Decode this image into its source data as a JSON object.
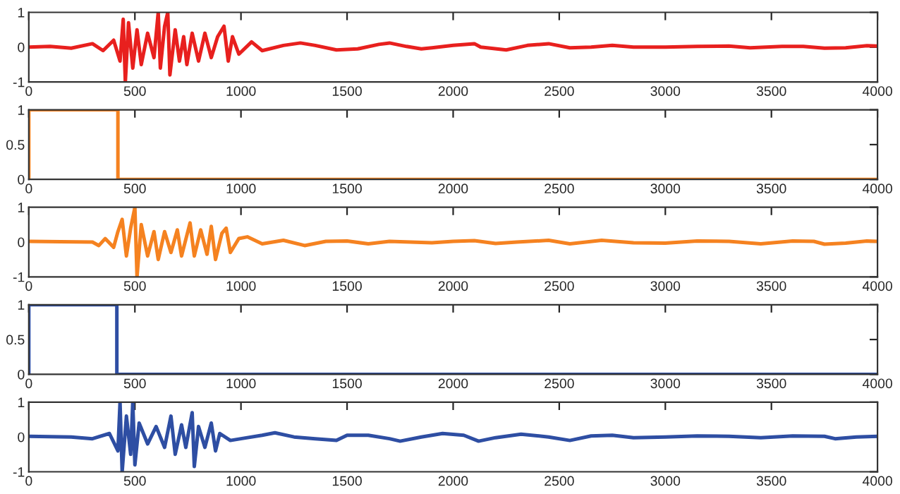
{
  "chart_data": [
    {
      "type": "line",
      "xlim": [
        0,
        4000
      ],
      "ylim": [
        -1,
        1
      ],
      "xticks": [
        0,
        500,
        1000,
        1500,
        2000,
        2500,
        3000,
        3500,
        4000
      ],
      "yticks": [
        -1,
        0,
        1
      ],
      "grid": false,
      "legend": false,
      "series": [
        {
          "color": "#e8201e",
          "x": [
            0,
            100,
            200,
            300,
            350,
            400,
            430,
            445,
            455,
            470,
            490,
            510,
            530,
            560,
            590,
            610,
            620,
            640,
            655,
            665,
            690,
            710,
            730,
            745,
            770,
            800,
            830,
            860,
            890,
            920,
            940,
            960,
            990,
            1050,
            1100,
            1200,
            1280,
            1350,
            1450,
            1550,
            1650,
            1700,
            1780,
            1850,
            1900,
            2000,
            2100,
            2130,
            2250,
            2350,
            2450,
            2550,
            2650,
            2750,
            2850,
            3000,
            3150,
            3300,
            3400,
            3550,
            3650,
            3750,
            3850,
            3950,
            4000
          ],
          "values": [
            0,
            0.02,
            -0.03,
            0.1,
            -0.1,
            0.2,
            -0.4,
            0.8,
            -1,
            0.7,
            -0.6,
            0.5,
            -0.5,
            0.4,
            -0.3,
            1,
            -0.6,
            0.6,
            1,
            -0.8,
            0.5,
            -0.4,
            0.3,
            -0.5,
            0.4,
            -0.4,
            0.4,
            -0.3,
            0.3,
            0.6,
            -0.4,
            0.3,
            -0.2,
            0.15,
            -0.1,
            0.05,
            0.12,
            0.05,
            -0.08,
            -0.05,
            0.08,
            0.12,
            0.02,
            -0.05,
            -0.02,
            0.05,
            0.1,
            0,
            -0.08,
            0.05,
            0.1,
            -0.02,
            0,
            0.05,
            0,
            0,
            0.02,
            0.03,
            -0.02,
            0.02,
            0.02,
            -0.03,
            -0.02,
            0.04,
            0.03
          ]
        }
      ]
    },
    {
      "type": "line",
      "xlim": [
        0,
        4000
      ],
      "ylim": [
        0,
        1
      ],
      "xticks": [
        0,
        500,
        1000,
        1500,
        2000,
        2500,
        3000,
        3500,
        4000
      ],
      "yticks": [
        0,
        0.5,
        1
      ],
      "grid": false,
      "legend": false,
      "series": [
        {
          "color": "#f58220",
          "x": [
            0,
            0,
            420,
            420,
            4000
          ],
          "values": [
            0,
            1,
            1,
            0,
            0
          ]
        }
      ]
    },
    {
      "type": "line",
      "xlim": [
        0,
        4000
      ],
      "ylim": [
        -1,
        1
      ],
      "xticks": [
        0,
        500,
        1000,
        1500,
        2000,
        2500,
        3000,
        3500,
        4000
      ],
      "yticks": [
        -1,
        0,
        1
      ],
      "grid": false,
      "legend": false,
      "series": [
        {
          "color": "#f58220",
          "x": [
            0,
            300,
            330,
            360,
            400,
            420,
            440,
            460,
            480,
            500,
            510,
            530,
            560,
            590,
            610,
            640,
            670,
            700,
            720,
            760,
            780,
            810,
            840,
            860,
            880,
            910,
            930,
            950,
            990,
            1030,
            1100,
            1200,
            1300,
            1400,
            1500,
            1600,
            1700,
            1800,
            1900,
            2000,
            2100,
            2200,
            2300,
            2450,
            2550,
            2700,
            2850,
            3000,
            3150,
            3300,
            3450,
            3600,
            3700,
            3750,
            3850,
            3950,
            4000
          ],
          "values": [
            0.02,
            0,
            -0.1,
            0.1,
            -0.15,
            0.3,
            0.65,
            -0.4,
            0.4,
            1,
            -1,
            0.5,
            -0.4,
            0.3,
            -0.5,
            0.3,
            -0.3,
            0.35,
            -0.4,
            0.55,
            -0.4,
            0.35,
            -0.35,
            0.45,
            -0.5,
            0.25,
            0.4,
            -0.3,
            0.1,
            0.15,
            -0.05,
            0.05,
            -0.1,
            0.02,
            0.03,
            -0.05,
            0.02,
            0,
            -0.02,
            0.02,
            0.04,
            -0.04,
            0,
            0.05,
            -0.05,
            0.05,
            -0.02,
            -0.03,
            0.03,
            0.02,
            -0.05,
            0.03,
            0.02,
            -0.06,
            -0.03,
            0.03,
            0.02
          ]
        }
      ]
    },
    {
      "type": "line",
      "xlim": [
        0,
        4000
      ],
      "ylim": [
        0,
        1
      ],
      "xticks": [
        0,
        500,
        1000,
        1500,
        2000,
        2500,
        3000,
        3500,
        4000
      ],
      "yticks": [
        0,
        0.5,
        1
      ],
      "grid": false,
      "legend": false,
      "series": [
        {
          "color": "#2e4ea3",
          "x": [
            0,
            0,
            415,
            415,
            4000
          ],
          "values": [
            0,
            1,
            1,
            0,
            0
          ]
        }
      ]
    },
    {
      "type": "line",
      "xlim": [
        0,
        4000
      ],
      "ylim": [
        -1,
        1
      ],
      "xticks": [
        0,
        500,
        1000,
        1500,
        2000,
        2500,
        3000,
        3500,
        4000
      ],
      "yticks": [
        -1,
        0,
        1
      ],
      "grid": false,
      "legend": false,
      "series": [
        {
          "color": "#2e4ea3",
          "x": [
            0,
            200,
            300,
            380,
            420,
            430,
            440,
            460,
            480,
            490,
            500,
            520,
            560,
            600,
            640,
            670,
            690,
            720,
            740,
            770,
            780,
            800,
            830,
            860,
            880,
            900,
            950,
            1000,
            1100,
            1160,
            1250,
            1350,
            1450,
            1500,
            1600,
            1700,
            1750,
            1850,
            1950,
            2050,
            2120,
            2200,
            2320,
            2450,
            2550,
            2650,
            2750,
            2850,
            3000,
            3150,
            3300,
            3450,
            3600,
            3750,
            3800,
            3900,
            4000
          ],
          "values": [
            0.02,
            0,
            -0.05,
            0.1,
            -0.4,
            1,
            -1,
            0.6,
            -0.5,
            1,
            -0.8,
            0.4,
            -0.2,
            0.3,
            -0.3,
            0.6,
            -0.5,
            0.35,
            -0.3,
            0.7,
            -0.85,
            0.3,
            -0.3,
            0.4,
            -0.4,
            0.1,
            -0.1,
            -0.05,
            0.05,
            0.12,
            0,
            -0.05,
            -0.1,
            0.05,
            0.05,
            -0.05,
            -0.12,
            0,
            0.1,
            0.05,
            -0.12,
            -0.02,
            0.08,
            0,
            -0.1,
            0.03,
            0.05,
            -0.02,
            0,
            0.03,
            0.02,
            -0.02,
            0.03,
            0.02,
            -0.05,
            0,
            0.02
          ]
        }
      ]
    }
  ]
}
